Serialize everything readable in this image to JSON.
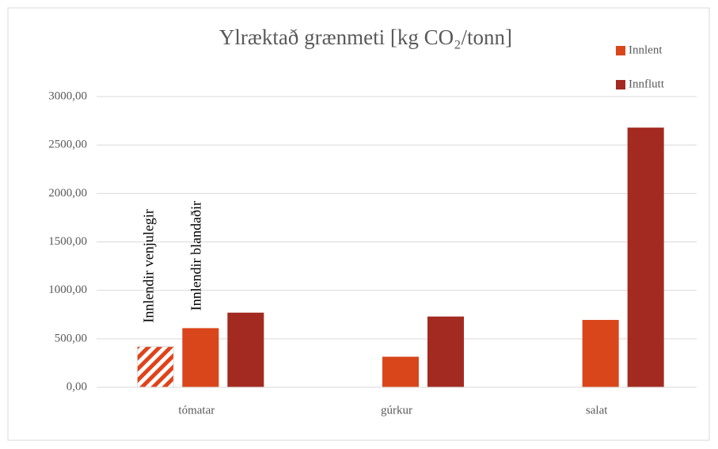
{
  "chart_data": {
    "type": "bar",
    "title": "Ylræktað grænmeti [kg CO₂/tonn]",
    "categories": [
      "tómatar",
      "gúrkur",
      "salat"
    ],
    "series": [
      {
        "name": "Innlent",
        "color": "#d9461b",
        "values": [
          610,
          315,
          695
        ]
      },
      {
        "name": "Innflutt",
        "color": "#a32a20",
        "values": [
          770,
          730,
          2680
        ]
      }
    ],
    "hatched_bar": {
      "label": "Innlendir venjulegir",
      "category": "tómatar",
      "value": 420,
      "color": "#e0431a"
    },
    "annotations": [
      "Innlendir blandaðir"
    ],
    "ylim": [
      0,
      3000
    ],
    "yticks": [
      {
        "value": 0,
        "label": "0,00"
      },
      {
        "value": 500,
        "label": "500,00"
      },
      {
        "value": 1000,
        "label": "1000,00"
      },
      {
        "value": 1500,
        "label": "1500,00"
      },
      {
        "value": 2000,
        "label": "2000,00"
      },
      {
        "value": 2500,
        "label": "2500,00"
      },
      {
        "value": 3000,
        "label": "3000,00"
      }
    ],
    "grid": true,
    "legend": "top-right"
  }
}
